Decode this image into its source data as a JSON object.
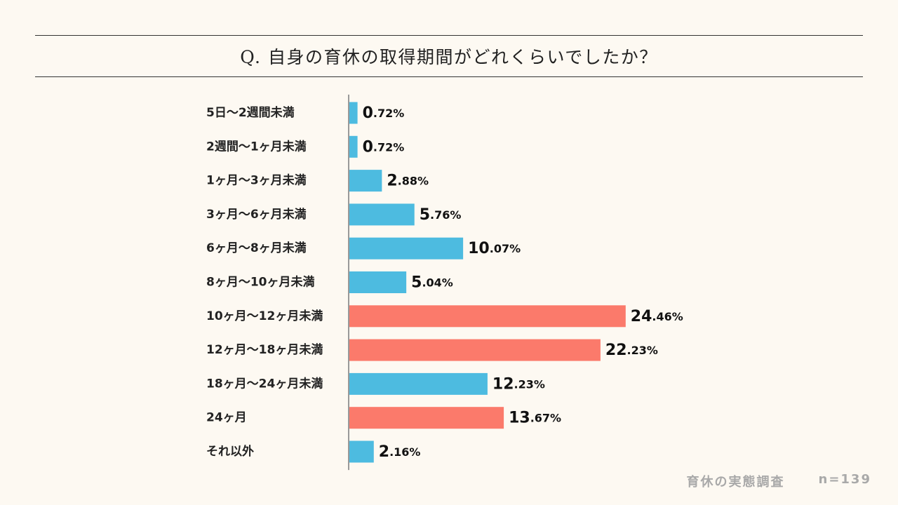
{
  "title": "Q. 自身の育休の取得期間がどれくらいでしたか？",
  "footer": {
    "source": "育休の実態調査",
    "sample": "n=139"
  },
  "colors": {
    "normal": "#4dbbe0",
    "highlight": "#fb7a6b",
    "axis": "#999999"
  },
  "chart_data": {
    "type": "bar",
    "orientation": "horizontal",
    "title": "Q. 自身の育休の取得期間がどれくらいでしたか？",
    "unit": "%",
    "categories": [
      "5日〜2週間未満",
      "2週間〜1ヶ月未満",
      "1ヶ月〜3ヶ月未満",
      "3ヶ月〜6ヶ月未満",
      "6ヶ月〜8ヶ月未満",
      "8ヶ月〜10ヶ月未満",
      "10ヶ月〜12ヶ月未満",
      "12ヶ月〜18ヶ月未満",
      "18ヶ月〜24ヶ月未満",
      "24ヶ月",
      "それ以外"
    ],
    "values": [
      0.72,
      0.72,
      2.88,
      5.76,
      10.07,
      5.04,
      24.46,
      22.23,
      12.23,
      13.67,
      2.16
    ],
    "labels": [
      "0.72%",
      "0.72%",
      "2.88%",
      "5.76%",
      "10.07%",
      "5.04%",
      "24.46%",
      "22.23%",
      "12.23%",
      "13.67%",
      "2.16%"
    ],
    "highlighted": [
      false,
      false,
      false,
      false,
      false,
      false,
      true,
      true,
      false,
      true,
      false
    ],
    "xlim": [
      0,
      25
    ]
  }
}
